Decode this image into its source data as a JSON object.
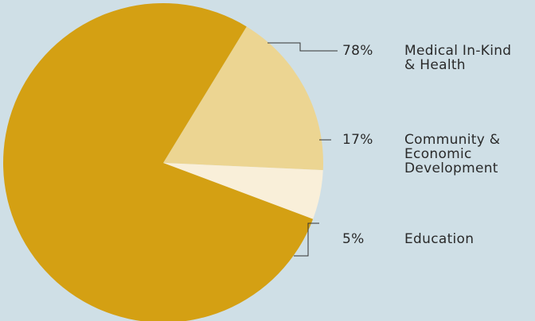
{
  "chart_data": {
    "type": "pie",
    "title": "",
    "slices": [
      {
        "percent_label": "78%",
        "label_lines": [
          "Medical In-Kind",
          "& Health"
        ],
        "value": 78,
        "color": "#d4a013"
      },
      {
        "percent_label": "17%",
        "label_lines": [
          "Community &",
          "Economic",
          "Development"
        ],
        "value": 17,
        "color": "#ecd592"
      },
      {
        "percent_label": "5%",
        "label_lines": [
          "Education"
        ],
        "value": 5,
        "color": "#f9efd9"
      }
    ],
    "legend_position": "right",
    "leader_line_color": "#333333"
  }
}
